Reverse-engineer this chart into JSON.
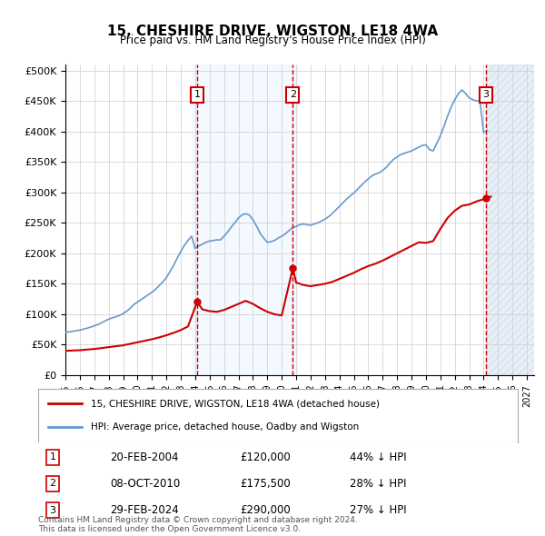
{
  "title": "15, CHESHIRE DRIVE, WIGSTON, LE18 4WA",
  "subtitle": "Price paid vs. HM Land Registry's House Price Index (HPI)",
  "ylabel_ticks": [
    "£0",
    "£50K",
    "£100K",
    "£150K",
    "£200K",
    "£250K",
    "£300K",
    "£350K",
    "£400K",
    "£450K",
    "£500K"
  ],
  "ytick_values": [
    0,
    50000,
    100000,
    150000,
    200000,
    250000,
    300000,
    350000,
    400000,
    450000,
    500000
  ],
  "ylim": [
    0,
    510000
  ],
  "xlim_start": 1995.0,
  "xlim_end": 2027.5,
  "hpi_color": "#6699cc",
  "price_color": "#cc0000",
  "transaction_color": "#cc0000",
  "background_color": "#ffffff",
  "grid_color": "#cccccc",
  "shade_color": "#ddeeff",
  "transactions": [
    {
      "date_num": 2004.13,
      "price": 120000,
      "label": "1",
      "pct": "44%",
      "date_str": "20-FEB-2004"
    },
    {
      "date_num": 2010.77,
      "price": 175500,
      "label": "2",
      "pct": "28%",
      "date_str": "08-OCT-2010"
    },
    {
      "date_num": 2024.16,
      "price": 290000,
      "label": "3",
      "pct": "27%",
      "date_str": "29-FEB-2024"
    }
  ],
  "legend_label_red": "15, CHESHIRE DRIVE, WIGSTON, LE18 4WA (detached house)",
  "legend_label_blue": "HPI: Average price, detached house, Oadby and Wigston",
  "footnote": "Contains HM Land Registry data © Crown copyright and database right 2024.\nThis data is licensed under the Open Government Licence v3.0.",
  "hpi_data": {
    "years": [
      1995.0,
      1995.25,
      1995.5,
      1995.75,
      1996.0,
      1996.25,
      1996.5,
      1996.75,
      1997.0,
      1997.25,
      1997.5,
      1997.75,
      1998.0,
      1998.25,
      1998.5,
      1998.75,
      1999.0,
      1999.25,
      1999.5,
      1999.75,
      2000.0,
      2000.25,
      2000.5,
      2000.75,
      2001.0,
      2001.25,
      2001.5,
      2001.75,
      2002.0,
      2002.25,
      2002.5,
      2002.75,
      2003.0,
      2003.25,
      2003.5,
      2003.75,
      2004.0,
      2004.25,
      2004.5,
      2004.75,
      2005.0,
      2005.25,
      2005.5,
      2005.75,
      2006.0,
      2006.25,
      2006.5,
      2006.75,
      2007.0,
      2007.25,
      2007.5,
      2007.75,
      2008.0,
      2008.25,
      2008.5,
      2008.75,
      2009.0,
      2009.25,
      2009.5,
      2009.75,
      2010.0,
      2010.25,
      2010.5,
      2010.75,
      2011.0,
      2011.25,
      2011.5,
      2011.75,
      2012.0,
      2012.25,
      2012.5,
      2012.75,
      2013.0,
      2013.25,
      2013.5,
      2013.75,
      2014.0,
      2014.25,
      2014.5,
      2014.75,
      2015.0,
      2015.25,
      2015.5,
      2015.75,
      2016.0,
      2016.25,
      2016.5,
      2016.75,
      2017.0,
      2017.25,
      2017.5,
      2017.75,
      2018.0,
      2018.25,
      2018.5,
      2018.75,
      2019.0,
      2019.25,
      2019.5,
      2019.75,
      2020.0,
      2020.25,
      2020.5,
      2020.75,
      2021.0,
      2021.25,
      2021.5,
      2021.75,
      2022.0,
      2022.25,
      2022.5,
      2022.75,
      2023.0,
      2023.25,
      2023.5,
      2023.75,
      2024.0,
      2024.25
    ],
    "values": [
      70000,
      71000,
      72000,
      73000,
      74000,
      75500,
      77000,
      79000,
      81000,
      83000,
      86000,
      89000,
      92000,
      94000,
      96000,
      98000,
      101000,
      105000,
      110000,
      116000,
      120000,
      124000,
      128000,
      132000,
      136000,
      141000,
      147000,
      153000,
      160000,
      170000,
      180000,
      192000,
      203000,
      213000,
      221000,
      228000,
      208000,
      212000,
      215000,
      218000,
      220000,
      221000,
      222000,
      222000,
      228000,
      235000,
      243000,
      250000,
      258000,
      263000,
      265000,
      263000,
      255000,
      245000,
      233000,
      225000,
      218000,
      219000,
      221000,
      225000,
      228000,
      232000,
      237000,
      242000,
      244000,
      247000,
      248000,
      247000,
      246000,
      248000,
      250000,
      253000,
      256000,
      260000,
      265000,
      271000,
      277000,
      283000,
      289000,
      294000,
      299000,
      305000,
      311000,
      317000,
      322000,
      327000,
      330000,
      332000,
      336000,
      341000,
      348000,
      354000,
      358000,
      362000,
      364000,
      366000,
      368000,
      371000,
      374000,
      377000,
      378000,
      370000,
      368000,
      380000,
      393000,
      408000,
      425000,
      440000,
      452000,
      462000,
      468000,
      462000,
      455000,
      452000,
      450000,
      450000,
      398000,
      402000
    ]
  },
  "price_data": {
    "years": [
      1995.0,
      1995.5,
      1996.0,
      1996.5,
      1997.0,
      1997.5,
      1998.0,
      1998.5,
      1999.0,
      1999.5,
      2000.0,
      2000.5,
      2001.0,
      2001.5,
      2002.0,
      2002.5,
      2003.0,
      2003.5,
      2004.13,
      2004.5,
      2005.0,
      2005.5,
      2006.0,
      2006.5,
      2007.0,
      2007.5,
      2008.0,
      2008.5,
      2009.0,
      2009.5,
      2010.0,
      2010.77,
      2011.0,
      2011.5,
      2012.0,
      2012.5,
      2013.0,
      2013.5,
      2014.0,
      2014.5,
      2015.0,
      2015.5,
      2016.0,
      2016.5,
      2017.0,
      2017.5,
      2018.0,
      2018.5,
      2019.0,
      2019.5,
      2020.0,
      2020.5,
      2021.0,
      2021.5,
      2022.0,
      2022.5,
      2023.0,
      2023.5,
      2024.16,
      2024.5
    ],
    "values": [
      40000,
      40500,
      41000,
      42000,
      43000,
      44500,
      46000,
      47500,
      49000,
      51500,
      54000,
      56500,
      59000,
      62000,
      65500,
      69500,
      74000,
      80000,
      120000,
      108000,
      105000,
      104000,
      107000,
      112000,
      117000,
      122000,
      117000,
      110000,
      104000,
      100000,
      98000,
      175500,
      152000,
      148000,
      146000,
      148000,
      150000,
      153000,
      158000,
      163000,
      168000,
      174000,
      179000,
      183000,
      188000,
      194000,
      200000,
      206000,
      212000,
      218000,
      217000,
      220000,
      240000,
      258000,
      270000,
      278000,
      280000,
      285000,
      290000,
      293000
    ]
  }
}
